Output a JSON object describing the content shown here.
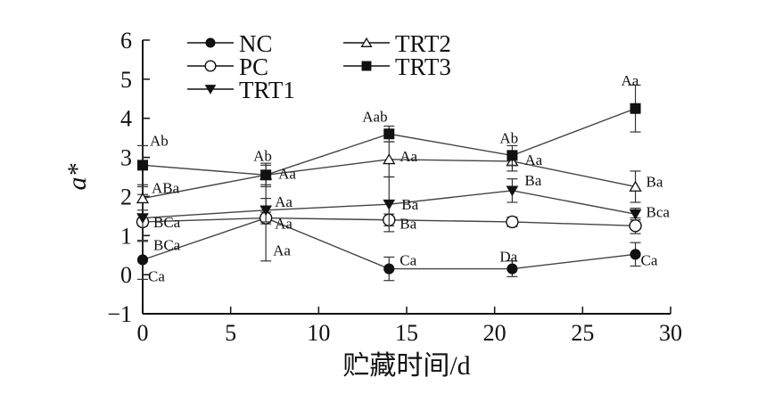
{
  "chart_data": {
    "type": "line",
    "title": "",
    "xlabel": "贮藏时间/d",
    "ylabel": "a*",
    "xlim": [
      0,
      30
    ],
    "ylim": [
      -1,
      6
    ],
    "xticks": [
      "0",
      "5",
      "10",
      "15",
      "20",
      "25",
      "30"
    ],
    "yticks": [
      "6",
      "5",
      "4",
      "3",
      "2",
      "1",
      "0",
      "−1"
    ],
    "grid": false,
    "legend_position": "top",
    "x": [
      0,
      7,
      14,
      21,
      28
    ],
    "series": [
      {
        "name": "NC",
        "marker": "filled-circle",
        "values": [
          0.38,
          1.45,
          0.15,
          0.15,
          0.52
        ],
        "errors": [
          0.5,
          1.1,
          0.3,
          0.2,
          0.3
        ],
        "sig_labels": [
          "Ca",
          "Aa",
          "Ca",
          "Da",
          "Ca"
        ]
      },
      {
        "name": "PC",
        "marker": "open-circle",
        "values": [
          1.35,
          1.45,
          1.4,
          1.35,
          1.25
        ],
        "errors": [
          0.1,
          0.15,
          0.15,
          0.12,
          0.2
        ],
        "sig_labels": [
          "BCa",
          "Aa",
          "Ba",
          "",
          "Bca"
        ]
      },
      {
        "name": "TRT1",
        "marker": "filled-down-triangle",
        "values": [
          1.45,
          1.65,
          1.8,
          2.15,
          1.55
        ],
        "errors": [
          0.6,
          0.3,
          0.7,
          0.3,
          0.15
        ],
        "sig_labels": [
          "BCa",
          "Aa",
          "Ba",
          "Ba",
          ""
        ]
      },
      {
        "name": "TRT2",
        "marker": "open-up-triangle",
        "values": [
          1.95,
          2.55,
          2.95,
          2.9,
          2.25
        ],
        "errors": [
          0.3,
          0.25,
          0.45,
          0.25,
          0.4
        ],
        "sig_labels": [
          "ABa",
          "Aa",
          "Aa",
          "Aa",
          "Ba"
        ]
      },
      {
        "name": "TRT3",
        "marker": "filled-square",
        "values": [
          2.8,
          2.55,
          3.6,
          3.05,
          4.25
        ],
        "errors": [
          0.5,
          0.3,
          0.2,
          0.25,
          0.6
        ],
        "sig_labels": [
          "Ab",
          "Ab",
          "Aab",
          "Ab",
          "Aa"
        ]
      }
    ]
  }
}
